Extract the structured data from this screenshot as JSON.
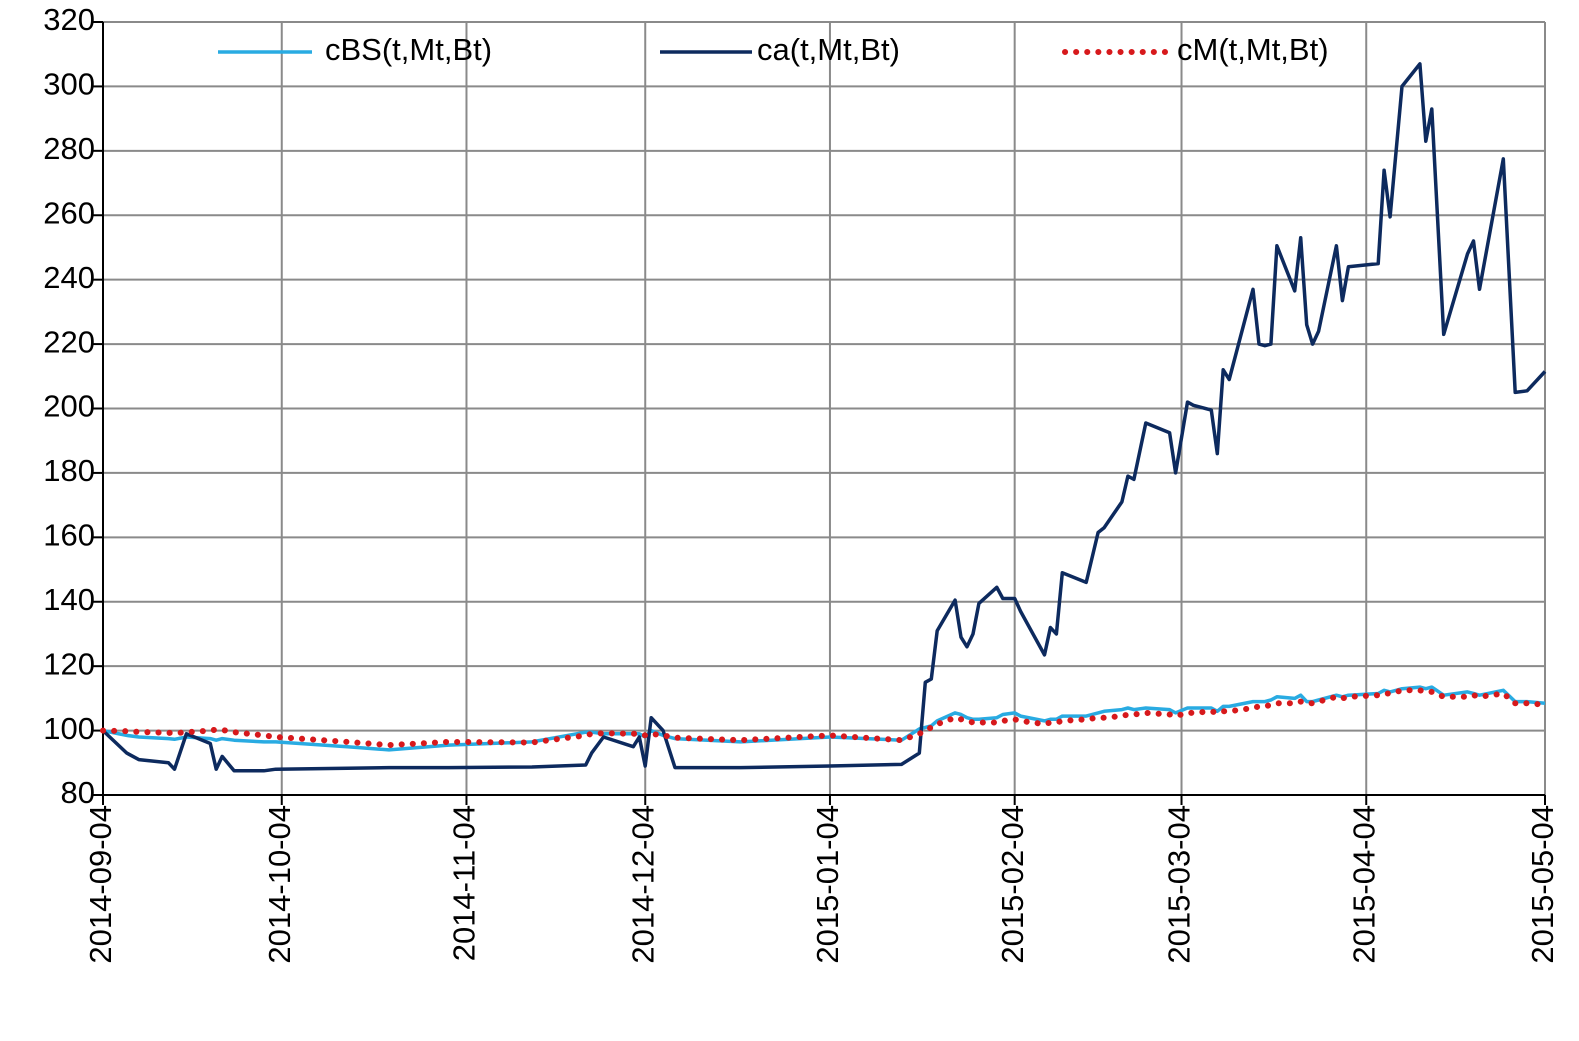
{
  "chart_data": {
    "type": "line",
    "x": [
      "2014-09-04",
      "2014-09-08",
      "2014-09-10",
      "2014-09-15",
      "2014-09-16",
      "2014-09-18",
      "2014-09-22",
      "2014-09-23",
      "2014-09-24",
      "2014-09-26",
      "2014-10-01",
      "2014-10-03",
      "2014-10-15",
      "2014-10-22",
      "2014-11-01",
      "2014-11-15",
      "2014-11-24",
      "2014-11-25",
      "2014-11-27",
      "2014-12-02",
      "2014-12-03",
      "2014-12-04",
      "2014-12-05",
      "2014-12-07",
      "2014-12-09",
      "2014-12-20",
      "2015-01-04",
      "2015-01-16",
      "2015-01-19",
      "2015-01-20",
      "2015-01-21",
      "2015-01-22",
      "2015-01-25",
      "2015-01-26",
      "2015-01-27",
      "2015-01-28",
      "2015-01-29",
      "2015-02-01",
      "2015-02-02",
      "2015-02-04",
      "2015-02-05",
      "2015-02-09",
      "2015-02-10",
      "2015-02-11",
      "2015-02-12",
      "2015-02-16",
      "2015-02-18",
      "2015-02-19",
      "2015-02-22",
      "2015-02-23",
      "2015-02-24",
      "2015-02-26",
      "2015-03-02",
      "2015-03-03",
      "2015-03-05",
      "2015-03-06",
      "2015-03-09",
      "2015-03-10",
      "2015-03-11",
      "2015-03-12",
      "2015-03-16",
      "2015-03-17",
      "2015-03-18",
      "2015-03-19",
      "2015-03-20",
      "2015-03-23",
      "2015-03-24",
      "2015-03-25",
      "2015-03-26",
      "2015-03-27",
      "2015-03-30",
      "2015-03-31",
      "2015-04-01",
      "2015-04-06",
      "2015-04-07",
      "2015-04-08",
      "2015-04-10",
      "2015-04-13",
      "2015-04-14",
      "2015-04-15",
      "2015-04-17",
      "2015-04-21",
      "2015-04-22",
      "2015-04-23",
      "2015-04-27",
      "2015-04-29",
      "2015-05-01",
      "2015-05-04"
    ],
    "series": [
      {
        "name": "cBS(t,Mt,Bt)",
        "color": "#29abe2",
        "linestyle": "solid",
        "values": [
          100,
          98.5,
          98,
          97.5,
          97.3,
          98,
          97.5,
          97,
          97.5,
          97,
          96.5,
          96.5,
          95,
          94,
          95.5,
          96.5,
          99.5,
          99.5,
          99,
          99,
          99,
          98,
          100,
          98.5,
          97.5,
          96.5,
          98,
          97,
          100.5,
          101,
          101.5,
          103,
          105.5,
          105,
          104,
          103.5,
          103.5,
          104,
          105,
          105.5,
          104.5,
          103,
          103.5,
          103.5,
          104.5,
          104.5,
          105.5,
          106,
          106.5,
          107,
          106.5,
          107,
          106.5,
          105.5,
          107,
          107,
          107,
          106,
          107.5,
          107.5,
          109,
          109,
          109,
          109.5,
          110.5,
          110,
          111,
          109,
          109,
          109.5,
          111,
          110.5,
          111,
          111.5,
          112.5,
          112,
          113,
          113.5,
          113,
          113.5,
          111,
          112,
          111.5,
          111,
          112.5,
          109,
          109,
          108.5
        ]
      },
      {
        "name": "ca(t,Mt,Bt)",
        "color": "#0d2a5e",
        "linestyle": "solid",
        "values": [
          100,
          93,
          91,
          90,
          88,
          99,
          96,
          88,
          92,
          87.5,
          87.5,
          88,
          88.3,
          88.5,
          88.5,
          88.7,
          89.3,
          93,
          98,
          95,
          98,
          89,
          104,
          100,
          88.5,
          88.5,
          89,
          89.5,
          93,
          115,
          116,
          131,
          140.5,
          129,
          126,
          130,
          139.5,
          144.5,
          141,
          141,
          137,
          123.5,
          132,
          130,
          149,
          146,
          161.5,
          163,
          171,
          179,
          178,
          195.5,
          192.5,
          180,
          202,
          201,
          199.5,
          186,
          212,
          209,
          237,
          220,
          219.5,
          220,
          250.5,
          236.5,
          253,
          226,
          220,
          224,
          250.5,
          233.5,
          244,
          245,
          274,
          259.5,
          300,
          307,
          283,
          293,
          223,
          248,
          252,
          237,
          277.5,
          205,
          205.5,
          211.5
        ]
      },
      {
        "name": "cM(t,Mt,Bt)",
        "color": "#d7191c",
        "linestyle": "dotted",
        "values": [
          100,
          99.8,
          99.6,
          99.3,
          99.2,
          99.5,
          100,
          100.3,
          100.2,
          99.5,
          98.5,
          98,
          96.5,
          95.5,
          96.5,
          96.3,
          98.5,
          99,
          99.2,
          99,
          99,
          98.5,
          99,
          98.5,
          97.8,
          97,
          98.5,
          97,
          99,
          100,
          101,
          102,
          104,
          103.5,
          103,
          102.5,
          102.5,
          102.5,
          103,
          103.5,
          103,
          102,
          102.5,
          102.5,
          103,
          103.5,
          104,
          104,
          104.5,
          105,
          105,
          105.5,
          105,
          104.5,
          105.5,
          105.5,
          106,
          105.5,
          106,
          106,
          107,
          107.5,
          107.5,
          108,
          108.5,
          108.5,
          109,
          108.5,
          108.5,
          109,
          110.5,
          110,
          110.5,
          111,
          111.5,
          111.5,
          112.5,
          112.5,
          112,
          112,
          110.5,
          110.5,
          111,
          110.5,
          111.5,
          108.5,
          108.5,
          108
        ]
      }
    ],
    "xlim": [
      "2014-09-04",
      "2015-05-04"
    ],
    "xticks": [
      "2014-09-04",
      "2014-10-04",
      "2014-11-04",
      "2014-12-04",
      "2015-01-04",
      "2015-02-04",
      "2015-03-04",
      "2015-04-04",
      "2015-05-04"
    ],
    "ylim": [
      80,
      320
    ],
    "yticks": [
      80,
      100,
      120,
      140,
      160,
      180,
      200,
      220,
      240,
      260,
      280,
      300,
      320
    ],
    "grid": true,
    "legend": "top"
  }
}
